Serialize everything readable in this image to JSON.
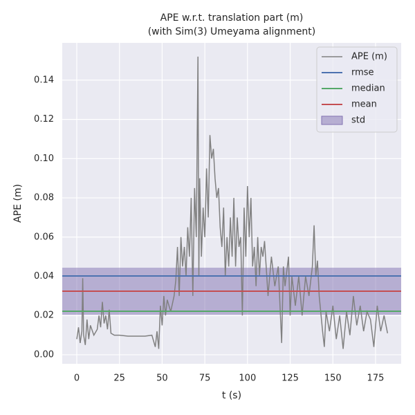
{
  "chart_data": {
    "type": "line",
    "title": "APE w.r.t. translation part (m)",
    "subtitle": "(with Sim(3) Umeyama alignment)",
    "xlabel": "t (s)",
    "ylabel": "APE (m)",
    "xlim": [
      -8.5,
      190
    ],
    "ylim": [
      -0.0046,
      0.159
    ],
    "xticks": [
      0,
      25,
      50,
      75,
      100,
      125,
      150,
      175
    ],
    "yticks": [
      {
        "value": 0,
        "label": "0.00"
      },
      {
        "value": 0.02,
        "label": "0.02"
      },
      {
        "value": 0.04,
        "label": "0.04"
      },
      {
        "value": 0.06,
        "label": "0.06"
      },
      {
        "value": 0.08,
        "label": "0.08"
      },
      {
        "value": 0.1,
        "label": "0.10"
      },
      {
        "value": 0.12,
        "label": "0.12"
      },
      {
        "value": 0.14,
        "label": "0.14"
      }
    ],
    "grid": true,
    "legend": "upper right",
    "series": [
      {
        "name": "APE (m)",
        "color": "#808080",
        "x": [
          0,
          1,
          2,
          3,
          3.5,
          4,
          5,
          6,
          7,
          8,
          10,
          12,
          13,
          14,
          15,
          16,
          17,
          18,
          19,
          20,
          22,
          25,
          30,
          35,
          40,
          44,
          46,
          47,
          48,
          49,
          50,
          51,
          52,
          53,
          55,
          57,
          58,
          59,
          60,
          61,
          62,
          63,
          64,
          65,
          66,
          67,
          68,
          69,
          70,
          71,
          71.5,
          72,
          73,
          74,
          75,
          76,
          77,
          78,
          79,
          80,
          81,
          82,
          83,
          84,
          85,
          86,
          87,
          88,
          89,
          90,
          91,
          92,
          93,
          94,
          95,
          96,
          97,
          98,
          99,
          100,
          101,
          102,
          103,
          104,
          105,
          106,
          107,
          108,
          109,
          110,
          112,
          114,
          116,
          118,
          120,
          121,
          122,
          124,
          125,
          126,
          128,
          130,
          132,
          134,
          136,
          138,
          139,
          140,
          141,
          142,
          144,
          145,
          146,
          148,
          150,
          152,
          154,
          156,
          158,
          160,
          162,
          164,
          166,
          168,
          170,
          172,
          174,
          176,
          178,
          180,
          182
        ],
        "values": [
          0.008,
          0.014,
          0.006,
          0.012,
          0.039,
          0.01,
          0.005,
          0.018,
          0.008,
          0.015,
          0.01,
          0.013,
          0.02,
          0.014,
          0.027,
          0.016,
          0.02,
          0.013,
          0.023,
          0.011,
          0.01,
          0.01,
          0.0095,
          0.0095,
          0.0095,
          0.01,
          0.004,
          0.012,
          0.003,
          0.025,
          0.015,
          0.03,
          0.02,
          0.028,
          0.022,
          0.03,
          0.038,
          0.055,
          0.03,
          0.06,
          0.045,
          0.055,
          0.04,
          0.065,
          0.05,
          0.08,
          0.03,
          0.085,
          0.06,
          0.152,
          0.04,
          0.09,
          0.05,
          0.075,
          0.06,
          0.095,
          0.07,
          0.112,
          0.1,
          0.105,
          0.09,
          0.08,
          0.085,
          0.065,
          0.055,
          0.075,
          0.04,
          0.06,
          0.045,
          0.07,
          0.05,
          0.08,
          0.045,
          0.07,
          0.055,
          0.06,
          0.02,
          0.075,
          0.05,
          0.086,
          0.06,
          0.08,
          0.045,
          0.055,
          0.035,
          0.06,
          0.04,
          0.055,
          0.05,
          0.058,
          0.03,
          0.05,
          0.035,
          0.045,
          0.006,
          0.045,
          0.035,
          0.05,
          0.02,
          0.04,
          0.025,
          0.04,
          0.02,
          0.04,
          0.03,
          0.045,
          0.066,
          0.04,
          0.048,
          0.03,
          0.012,
          0.004,
          0.022,
          0.012,
          0.025,
          0.008,
          0.02,
          0.003,
          0.022,
          0.01,
          0.03,
          0.015,
          0.025,
          0.012,
          0.022,
          0.018,
          0.004,
          0.025,
          0.012,
          0.02,
          0.011
        ]
      },
      {
        "name": "rmse",
        "color": "#4c72b0",
        "value": 0.0402
      },
      {
        "name": "median",
        "color": "#55a868",
        "value": 0.0222
      },
      {
        "name": "mean",
        "color": "#c44e52",
        "value": 0.0324
      },
      {
        "name": "std",
        "color": "#8172b2",
        "value": 0.012
      }
    ]
  }
}
